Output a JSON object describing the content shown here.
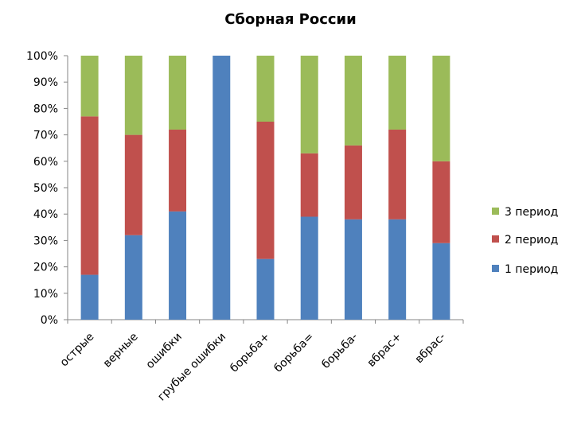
{
  "chart_data": {
    "type": "bar",
    "stacked": "percent",
    "title": "Сборная России",
    "xlabel": "",
    "ylabel": "",
    "categories": [
      "острые",
      "верные",
      "ошибки",
      "грубые ошибки",
      "борьба+",
      "борьба=",
      "борьба-",
      "вбрас+",
      "вбрас-"
    ],
    "series": [
      {
        "name": "1 период",
        "color": "#4F81BD",
        "values": [
          17,
          32,
          41,
          100,
          23,
          39,
          38,
          38,
          29
        ]
      },
      {
        "name": "2 период",
        "color": "#C0504D",
        "values": [
          60,
          38,
          31,
          0,
          52,
          24,
          28,
          34,
          31
        ]
      },
      {
        "name": "3 период",
        "color": "#9BBB59",
        "values": [
          23,
          30,
          28,
          0,
          25,
          37,
          34,
          28,
          40
        ]
      }
    ],
    "ylim": [
      0,
      100
    ],
    "yticks": [
      "0%",
      "10%",
      "20%",
      "30%",
      "40%",
      "50%",
      "60%",
      "70%",
      "80%",
      "90%",
      "100%"
    ],
    "grid": false,
    "legend_position": "right",
    "legend_order": [
      "3 период",
      "2 период",
      "1 период"
    ]
  }
}
